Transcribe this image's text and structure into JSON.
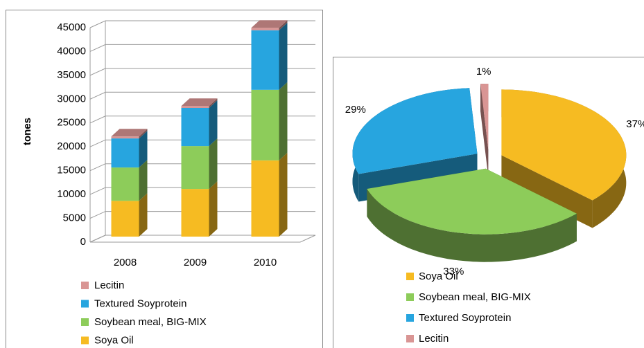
{
  "chart_data": [
    {
      "type": "bar3d_stacked",
      "categories": [
        "2008",
        "2009",
        "2010"
      ],
      "series": [
        {
          "name": "Soya Oil",
          "color": "#f6bb22",
          "values": [
            7500,
            10000,
            16000
          ]
        },
        {
          "name": "Soybean meal, BIG-MIX",
          "color": "#8dcc5a",
          "values": [
            7000,
            9000,
            14800
          ]
        },
        {
          "name": "Textured Soyprotein",
          "color": "#27a5df",
          "values": [
            6100,
            8000,
            12500
          ]
        },
        {
          "name": "Lecitin",
          "color": "#d99594",
          "values": [
            400,
            400,
            500
          ]
        }
      ],
      "ylabel": "tones",
      "ylim": [
        0,
        45000
      ],
      "yticks": [
        0,
        5000,
        10000,
        15000,
        20000,
        25000,
        30000,
        35000,
        40000,
        45000
      ],
      "grid": true
    },
    {
      "type": "pie3d",
      "categories": [
        "Soya Oil",
        "Soybean meal, BIG-MIX",
        "Textured Soyprotein",
        "Lecitin"
      ],
      "values": [
        37,
        33,
        29,
        1
      ],
      "value_labels": [
        "37%",
        "33%",
        "29%",
        "1%"
      ],
      "colors": [
        "#f6bb22",
        "#8dcc5a",
        "#27a5df",
        "#d99594"
      ]
    }
  ]
}
